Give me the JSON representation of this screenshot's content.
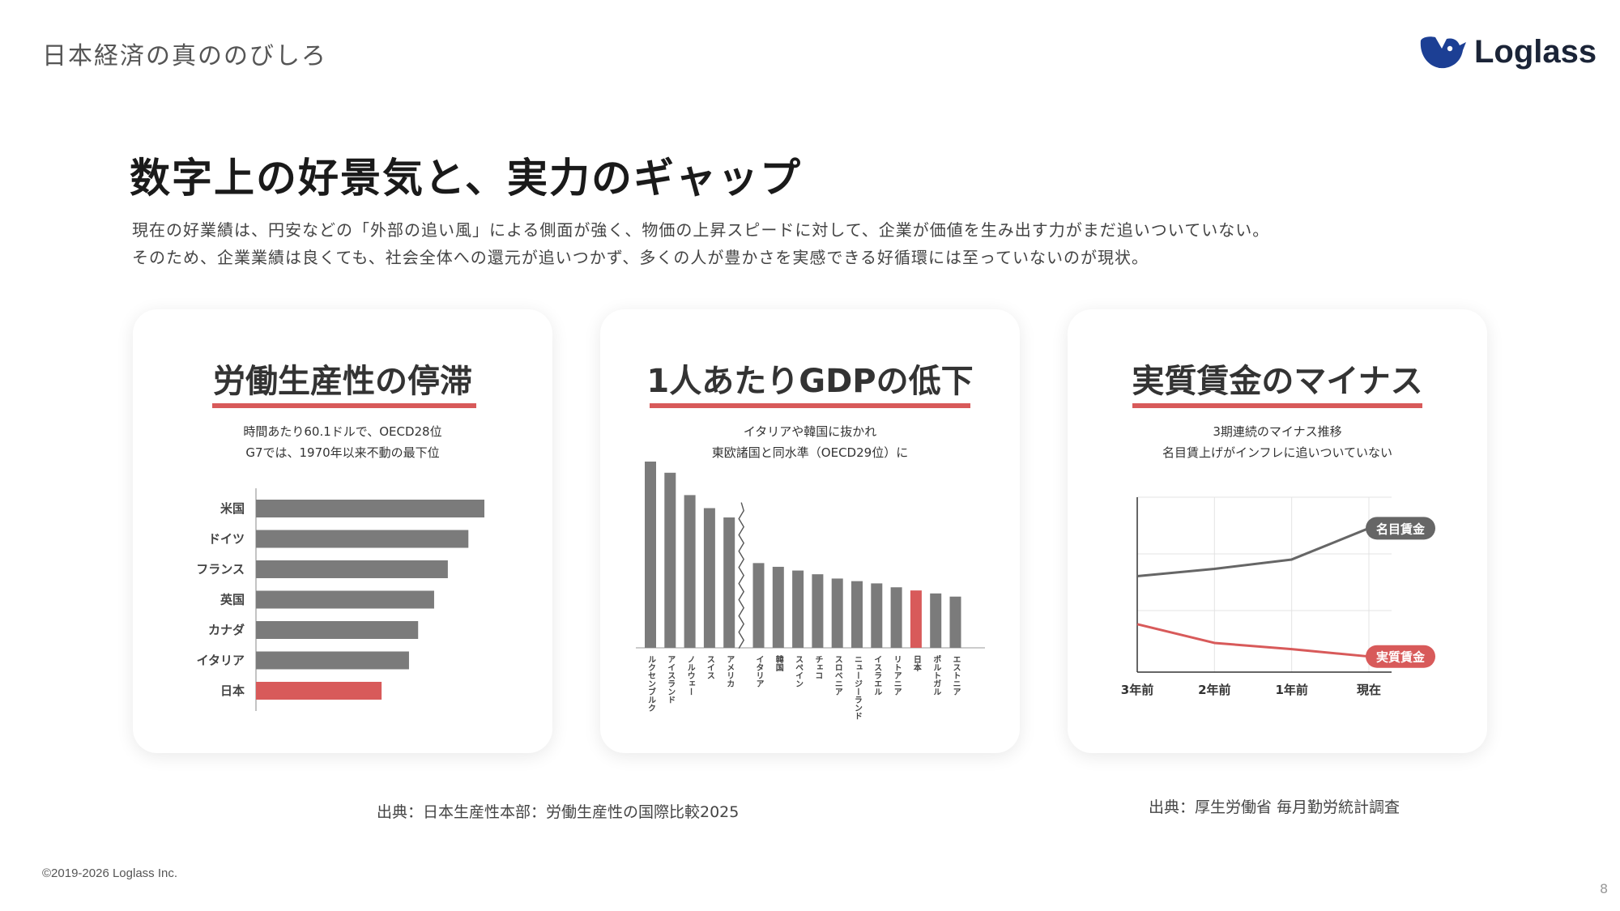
{
  "header": {
    "section_title": "日本経済の真ののびしろ",
    "logo_text": "Loglass"
  },
  "slide": {
    "title": "数字上の好景気と、実力のギャップ",
    "body": [
      "現在の好業績は、円安などの「外部の追い風」による側面が強く、物価の上昇スピードに対して、企業が価値を生み出す力がまだ追いついていない。",
      "そのため、企業業績は良くても、社会全体への還元が追いつかず、多くの人が豊かさを実感できる好循環には至っていないのが現状。"
    ]
  },
  "cards": [
    {
      "title": "労働生産性の停滞",
      "subtitle": [
        "時間あたり60.1ドルで、OECD28位",
        "G7では、1970年以来不動の最下位"
      ]
    },
    {
      "title": "1人あたりGDPの低下",
      "subtitle": [
        "イタリアや韓国に抜かれ",
        "東欧諸国と同水準（OECD29位）に"
      ]
    },
    {
      "title": "実質賃金のマイナス",
      "subtitle": [
        "3期連続のマイナス推移",
        "名目賃上げがインフレに追いついていない"
      ]
    }
  ],
  "sources": {
    "left": "出典：日本生産性本部：労働生産性の国際比較2025",
    "right": "出典：厚生労働省 毎月勤労統計調査"
  },
  "footer": {
    "copyright": "©2019-2026 Loglass Inc.",
    "page_number": "8"
  },
  "colors": {
    "accent": "#d85a5a",
    "bar": "#7b7b7b",
    "line_nominal": "#666666",
    "text_dark": "#333333"
  },
  "chart_data": [
    {
      "type": "bar",
      "orientation": "horizontal",
      "title": "労働生産性の停滞",
      "categories": [
        "米国",
        "ドイツ",
        "フランス",
        "英国",
        "カナダ",
        "イタリア",
        "日本"
      ],
      "values": [
        100,
        93,
        84,
        78,
        71,
        67,
        55
      ],
      "highlight": "日本",
      "value_axis": "relative (unlabeled)"
    },
    {
      "type": "bar",
      "title": "1人あたりGDPの低下",
      "categories": [
        "ルクセンブルク",
        "アイスランド",
        "ノルウェー",
        "スイス",
        "アメリカ",
        "イタリア",
        "韓国",
        "スペイン",
        "チェコ",
        "スロベニア",
        "ニュージーランド",
        "イスラエル",
        "リトアニア",
        "日本",
        "ポルトガル",
        "エストニア"
      ],
      "values": [
        100,
        94,
        82,
        75,
        70,
        45.5,
        43.5,
        41.5,
        39.5,
        37.2,
        35.8,
        34.6,
        32.5,
        30.8,
        29.2,
        27.5
      ],
      "axis_break_after": "アメリカ",
      "highlight": "日本",
      "value_axis": "relative (unlabeled)"
    },
    {
      "type": "line",
      "title": "実質賃金のマイナス",
      "categories": [
        "3年前",
        "2年前",
        "1年前",
        "現在"
      ],
      "series": [
        {
          "name": "名目賃金",
          "values": [
            32,
            39,
            48,
            78
          ],
          "color": "#666666"
        },
        {
          "name": "実質賃金",
          "values": [
            -14,
            -32,
            -38,
            -45
          ],
          "color": "#d85a5a"
        }
      ],
      "ylim": [
        -60,
        100
      ],
      "grid": true,
      "value_axis": "relative (unlabeled)"
    }
  ]
}
